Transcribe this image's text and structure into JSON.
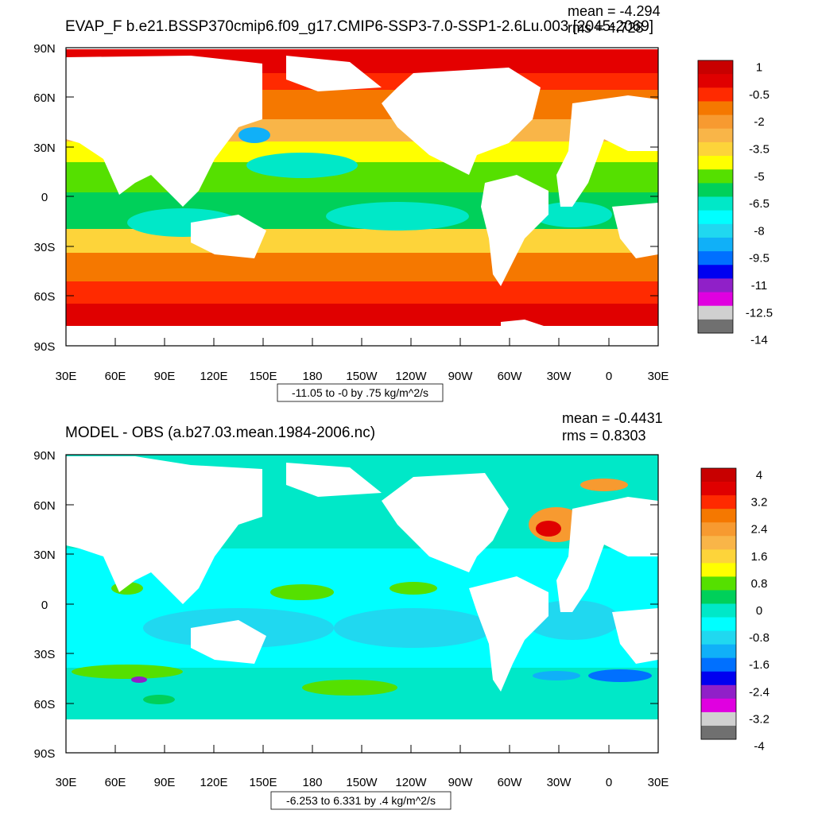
{
  "panels": [
    {
      "title": "EVAP_F b.e21.BSSP370cmip6.f09_g17.CMIP6-SSP3-7.0-SSP1-2.6Lu.003 [2045-2069]",
      "mean_label": "mean = -4.294",
      "rms_label": "rms = 4.728",
      "range_label": "-11.05 to -0 by .75 kg/m^2/s",
      "lat_ticks": [
        "90N",
        "60N",
        "30N",
        "0",
        "30S",
        "60S",
        "90S"
      ],
      "lon_ticks": [
        "30E",
        "60E",
        "90E",
        "120E",
        "150E",
        "180",
        "150W",
        "120W",
        "90W",
        "60W",
        "30W",
        "0",
        "30E"
      ],
      "colorbar": {
        "labels": [
          "1",
          "-0.5",
          "-2",
          "-3.5",
          "-5",
          "-6.5",
          "-8",
          "-9.5",
          "-11",
          "-12.5",
          "-14"
        ],
        "colors": [
          "#c80000",
          "#e00000",
          "#ff2a00",
          "#f57800",
          "#f79a30",
          "#f9b548",
          "#fdd43a",
          "#ffff00",
          "#55e000",
          "#00d05a",
          "#00e8c8",
          "#00ffff",
          "#20d8f0",
          "#10b0f8",
          "#0070ff",
          "#0000f0",
          "#9020c8",
          "#e000e0",
          "#d0d0d0",
          "#707070"
        ]
      }
    },
    {
      "title": "MODEL - OBS (a.b27.03.mean.1984-2006.nc)",
      "mean_label": "mean = -0.4431",
      "rms_label": "rms = 0.8303",
      "range_label": "-6.253 to 6.331 by .4 kg/m^2/s",
      "lat_ticks": [
        "90N",
        "60N",
        "30N",
        "0",
        "30S",
        "60S",
        "90S"
      ],
      "lon_ticks": [
        "30E",
        "60E",
        "90E",
        "120E",
        "150E",
        "180",
        "150W",
        "120W",
        "90W",
        "60W",
        "30W",
        "0",
        "30E"
      ],
      "colorbar": {
        "labels": [
          "4",
          "3.2",
          "2.4",
          "1.6",
          "0.8",
          "0",
          "-0.8",
          "-1.6",
          "-2.4",
          "-3.2",
          "-4"
        ],
        "colors": [
          "#c80000",
          "#e00000",
          "#ff2a00",
          "#f57800",
          "#f79a30",
          "#f9b548",
          "#fdd43a",
          "#ffff00",
          "#55e000",
          "#00d05a",
          "#00e8c8",
          "#00ffff",
          "#20d8f0",
          "#10b0f8",
          "#0070ff",
          "#0000f0",
          "#9020c8",
          "#e000e0",
          "#d0d0d0",
          "#707070"
        ]
      }
    }
  ]
}
